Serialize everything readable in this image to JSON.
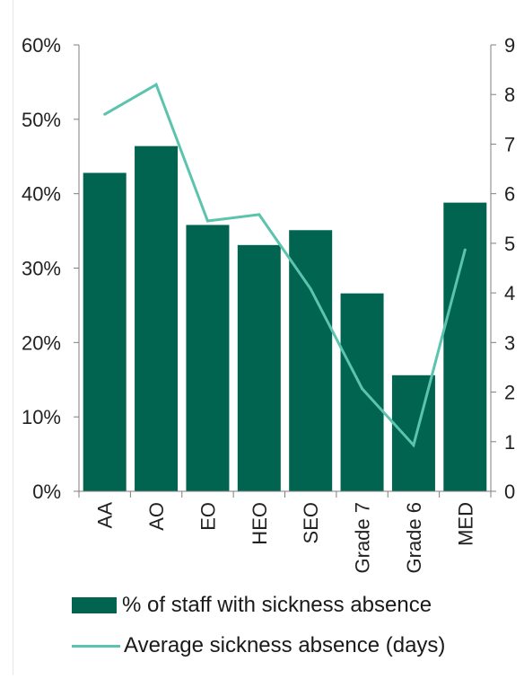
{
  "chart_data": {
    "type": "bar",
    "categories": [
      "AA",
      "AO",
      "EO",
      "HEO",
      "SEO",
      "Grade 7",
      "Grade 6",
      "MED"
    ],
    "series": [
      {
        "name": "% of staff with sickness absence",
        "type": "bar",
        "axis": "left",
        "color": "#006450",
        "values": [
          42.8,
          46.4,
          35.8,
          33.1,
          35.1,
          26.6,
          15.6,
          38.8
        ]
      },
      {
        "name": "Average sickness absence (days)",
        "type": "line",
        "axis": "right",
        "color": "#5cc3ae",
        "values": [
          7.6,
          8.2,
          5.45,
          5.58,
          4.08,
          2.07,
          0.93,
          4.87
        ]
      }
    ],
    "y_left": {
      "ylim": [
        0,
        60
      ],
      "ticks": [
        "0%",
        "10%",
        "20%",
        "30%",
        "40%",
        "50%",
        "60%"
      ]
    },
    "y_right": {
      "ylim": [
        0,
        9
      ],
      "ticks": [
        "0",
        "1",
        "2",
        "3",
        "4",
        "5",
        "6",
        "7",
        "8",
        "9"
      ]
    },
    "grid": false,
    "legend_position": "bottom"
  },
  "legend": {
    "bar_label": "% of staff with sickness absence",
    "line_label": "Average sickness absence (days)"
  }
}
